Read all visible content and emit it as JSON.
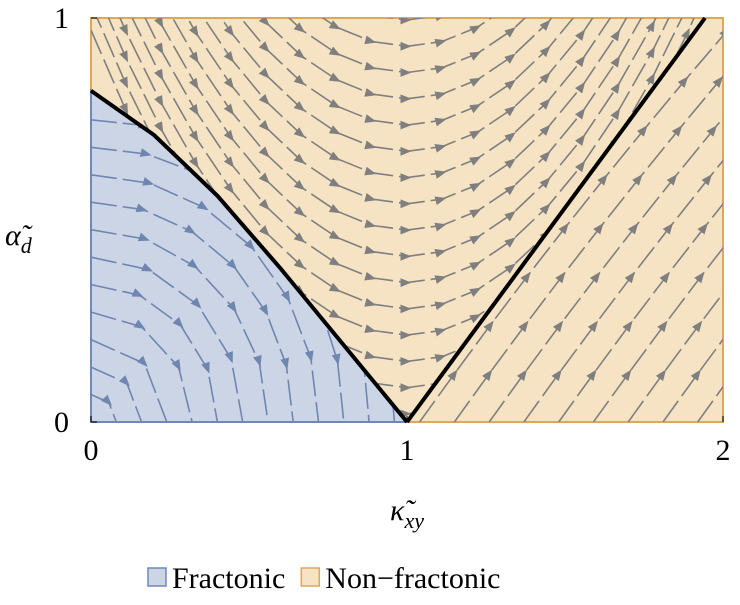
{
  "chart_data": {
    "type": "phase-diagram",
    "x_label": {
      "symbol": "κ̃",
      "subscript": "xy"
    },
    "y_label": {
      "symbol": "α̃",
      "subscript": "d"
    },
    "xlim": [
      0,
      2
    ],
    "ylim": [
      0,
      1
    ],
    "xticks": [
      0,
      1,
      2
    ],
    "yticks": [
      0,
      1
    ],
    "regions": [
      {
        "name": "Fractonic",
        "color": "#ccd5e6",
        "edge": "#6e88b8"
      },
      {
        "name": "Non−fractonic",
        "color": "#f5e3c4",
        "edge": "#dba957"
      }
    ],
    "boundaries": [
      {
        "x": [
          0,
          0.2,
          0.4,
          0.6,
          0.8,
          1
        ],
        "y": [
          0.82,
          0.71,
          0.56,
          0.38,
          0.19,
          0
        ]
      },
      {
        "x": [
          1,
          1.943
        ],
        "y": [
          0,
          1
        ]
      }
    ]
  }
}
